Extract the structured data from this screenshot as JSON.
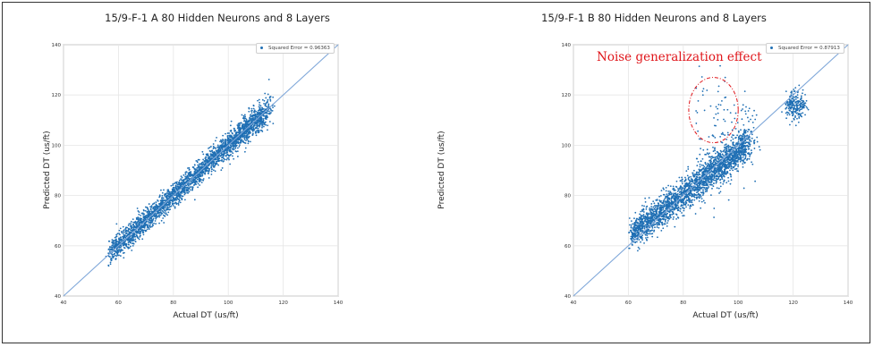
{
  "colors": {
    "points": "#1f6fb4",
    "fit_line": "#7fa7d9",
    "grid": "#e6e6e6",
    "annotation": "#e0161b"
  },
  "chart_data": [
    {
      "type": "scatter",
      "title": "15/9-F-1 A 80 Hidden Neurons and 8 Layers",
      "xlabel": "Actual DT (us/ft)",
      "ylabel": "Predicted DT (us/ft)",
      "xlim": [
        40,
        140
      ],
      "ylim": [
        40,
        140
      ],
      "xticks": [
        "40",
        "60",
        "80",
        "100",
        "120",
        "140"
      ],
      "yticks": [
        "40",
        "60",
        "80",
        "100",
        "120",
        "140"
      ],
      "grid": true,
      "legend_position": "top-right",
      "legend_label": "Squared Error = 0.96363",
      "reference_line": {
        "from": [
          40,
          40
        ],
        "to": [
          140,
          140
        ]
      },
      "point_clusters": [
        {
          "x_range": [
            57,
            113
          ],
          "slope": 1.0,
          "spread": 2.2,
          "count": 2600
        },
        {
          "x_range": [
            100,
            116
          ],
          "slope": 1.0,
          "spread": 3.5,
          "count": 250
        }
      ]
    },
    {
      "type": "scatter",
      "title": "15/9-F-1 B 80 Hidden Neurons and 8 Layers",
      "xlabel": "Actual DT (us/ft)",
      "ylabel": "Predicted DT (us/ft)",
      "xlim": [
        40,
        140
      ],
      "ylim": [
        40,
        140
      ],
      "xticks": [
        "40",
        "60",
        "80",
        "100",
        "120",
        "140"
      ],
      "yticks": [
        "40",
        "60",
        "80",
        "100",
        "120",
        "140"
      ],
      "grid": true,
      "legend_position": "top-right",
      "legend_label": "Squared Error = 0.87913",
      "reference_line": {
        "from": [
          40,
          40
        ],
        "to": [
          140,
          140
        ]
      },
      "annotation": {
        "text": "Noise generalization effect",
        "ellipse_center": [
          91,
          114
        ],
        "ellipse_radius": [
          9,
          13
        ]
      },
      "point_clusters": [
        {
          "x_range": [
            61,
            104
          ],
          "slope": 0.85,
          "spread": 3.0,
          "count": 2200
        },
        {
          "x_range": [
            85,
            107
          ],
          "slope": 0.9,
          "spread": 6.0,
          "count": 260
        },
        {
          "x_range": [
            118,
            124
          ],
          "slope": 0.0,
          "center_y": 116,
          "spread": 3.0,
          "count": 220
        },
        {
          "x_range": [
            84,
            98
          ],
          "slope": 0.0,
          "center_y": 116,
          "spread": 8.0,
          "count": 40
        }
      ]
    }
  ]
}
